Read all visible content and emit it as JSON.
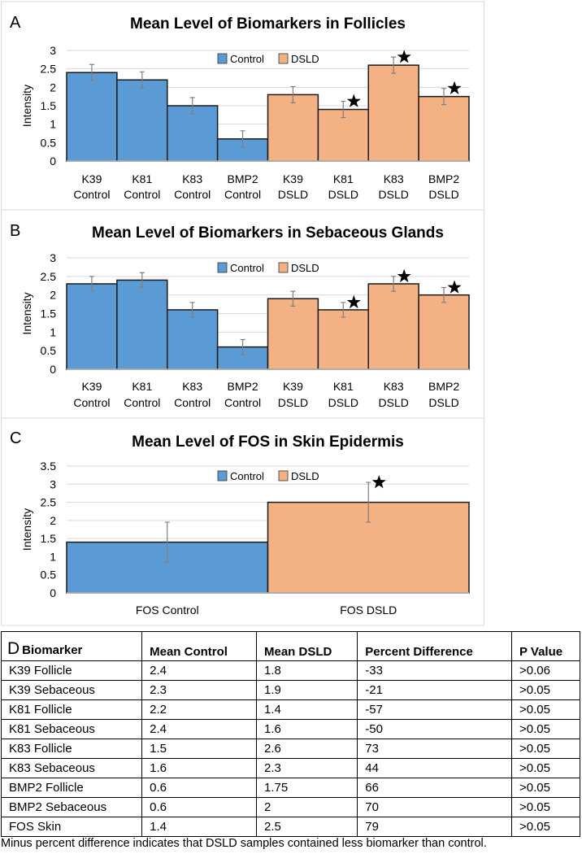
{
  "colors": {
    "control": "#5b9bd5",
    "dsld": "#f4b183",
    "grid": "#d9d9d9"
  },
  "chart_data": [
    {
      "type": "bar",
      "panel": "A",
      "title": "Mean Level of Biomarkers in Follicles",
      "ylabel": "Intensity",
      "ylim": [
        0,
        3
      ],
      "yticks": [
        "0",
        "0.5",
        "1",
        "1.5",
        "2",
        "2.5",
        "3"
      ],
      "ystep": 0.5,
      "legend": [
        "Control",
        "DSLD"
      ],
      "legend_position": "top-center",
      "grid": true,
      "categories": [
        [
          "K39",
          "Control"
        ],
        [
          "K81",
          "Control"
        ],
        [
          "K83",
          "Control"
        ],
        [
          "BMP2",
          "Control"
        ],
        [
          "K39",
          "DSLD"
        ],
        [
          "K81",
          "DSLD"
        ],
        [
          "K83",
          "DSLD"
        ],
        [
          "BMP2",
          "DSLD"
        ]
      ],
      "groups": [
        "control",
        "control",
        "control",
        "control",
        "dsld",
        "dsld",
        "dsld",
        "dsld"
      ],
      "values": [
        2.4,
        2.2,
        1.5,
        0.6,
        1.8,
        1.4,
        2.6,
        1.75
      ],
      "errors": [
        0.22,
        0.22,
        0.22,
        0.22,
        0.22,
        0.22,
        0.22,
        0.22
      ],
      "significant": [
        false,
        false,
        false,
        false,
        false,
        true,
        true,
        true
      ]
    },
    {
      "type": "bar",
      "panel": "B",
      "title": "Mean Level of Biomarkers in Sebaceous Glands",
      "ylabel": "Intensity",
      "ylim": [
        0,
        3
      ],
      "yticks": [
        "0",
        "0.5",
        "1",
        "1.5",
        "2",
        "2.5",
        "3"
      ],
      "ystep": 0.5,
      "legend": [
        "Control",
        "DSLD"
      ],
      "legend_position": "top-center",
      "grid": true,
      "categories": [
        [
          "K39",
          "Control"
        ],
        [
          "K81",
          "Control"
        ],
        [
          "K83",
          "Control"
        ],
        [
          "BMP2",
          "Control"
        ],
        [
          "K39",
          "DSLD"
        ],
        [
          "K81",
          "DSLD"
        ],
        [
          "K83",
          "DSLD"
        ],
        [
          "BMP2",
          "DSLD"
        ]
      ],
      "groups": [
        "control",
        "control",
        "control",
        "control",
        "dsld",
        "dsld",
        "dsld",
        "dsld"
      ],
      "values": [
        2.3,
        2.4,
        1.6,
        0.6,
        1.9,
        1.6,
        2.3,
        2.0
      ],
      "errors": [
        0.2,
        0.2,
        0.2,
        0.2,
        0.2,
        0.2,
        0.2,
        0.2
      ],
      "significant": [
        false,
        false,
        false,
        false,
        false,
        true,
        true,
        true
      ]
    },
    {
      "type": "bar",
      "panel": "C",
      "title": "Mean Level of FOS in Skin Epidermis",
      "ylabel": "Intensity",
      "ylim": [
        0,
        3.5
      ],
      "yticks": [
        "0",
        "0.5",
        "1",
        "1.5",
        "2",
        "2.5",
        "3",
        "3.5"
      ],
      "ystep": 0.5,
      "legend": [
        "Control",
        "DSLD"
      ],
      "legend_position": "top-center",
      "grid": true,
      "categories": [
        [
          "FOS Control"
        ],
        [
          "FOS DSLD"
        ]
      ],
      "groups": [
        "control",
        "dsld"
      ],
      "values": [
        1.4,
        2.5
      ],
      "errors": [
        0.55,
        0.55
      ],
      "significant": [
        false,
        true
      ]
    }
  ],
  "table": {
    "panel": "D",
    "headers": [
      "Biomarker",
      "Mean Control",
      "Mean DSLD",
      "Percent Difference",
      "P Value"
    ],
    "rows": [
      [
        "K39 Follicle",
        "2.4",
        "1.8",
        "-33",
        ">0.06"
      ],
      [
        "K39 Sebaceous",
        "2.3",
        "1.9",
        "-21",
        ">0.05"
      ],
      [
        "K81 Follicle",
        "2.2",
        "1.4",
        "-57",
        ">0.05"
      ],
      [
        "K81 Sebaceous",
        "2.4",
        "1.6",
        "-50",
        ">0.05"
      ],
      [
        "K83 Follicle",
        "1.5",
        "2.6",
        "73",
        ">0.05"
      ],
      [
        "K83 Sebaceous",
        "1.6",
        "2.3",
        "44",
        ">0.05"
      ],
      [
        "BMP2 Follicle",
        "0.6",
        "1.75",
        "66",
        ">0.05"
      ],
      [
        "BMP2 Sebaceous",
        "0.6",
        "2",
        "70",
        ">0.05"
      ],
      [
        "FOS Skin",
        "1.4",
        "2.5",
        "79",
        ">0.05"
      ]
    ],
    "caption": "Minus percent difference indicates that DSLD samples contained less biomarker than control."
  }
}
